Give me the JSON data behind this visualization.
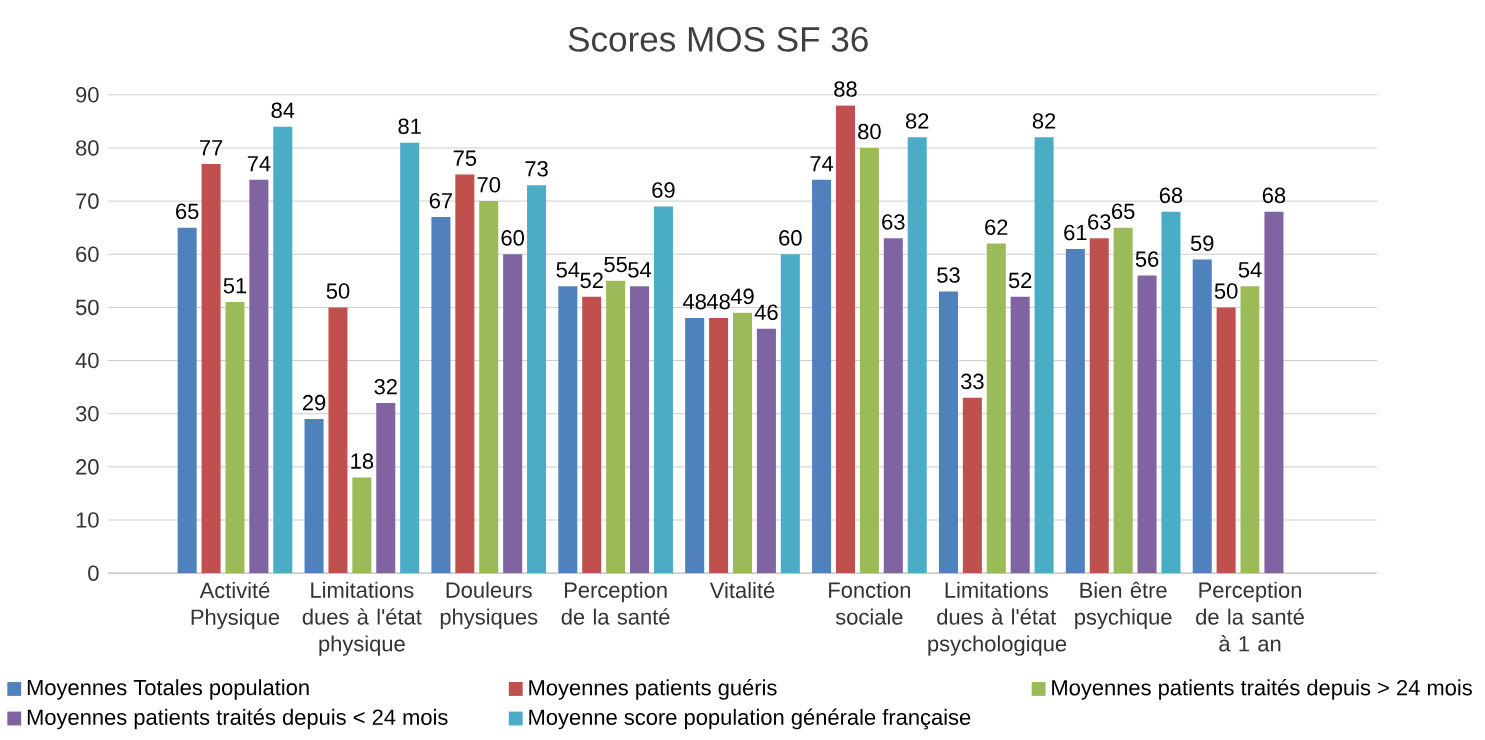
{
  "chart_data": {
    "type": "bar",
    "title": "Scores MOS SF 36",
    "categories": [
      "Activité Physique",
      "Limitations dues à l'état physique",
      "Douleurs physiques",
      "Perception de la santé",
      "Vitalité",
      "Fonction sociale",
      "Limitations dues à l'état psychologique",
      "Bien être psychique",
      "Perception de la santé à 1 an"
    ],
    "series": [
      {
        "name": "Moyennes Totales population",
        "color": "#4f81bd",
        "values": [
          65,
          29,
          67,
          54,
          48,
          74,
          53,
          61,
          59
        ]
      },
      {
        "name": "Moyennes patients guéris",
        "color": "#c0504d",
        "values": [
          77,
          50,
          75,
          52,
          48,
          88,
          33,
          63,
          50
        ]
      },
      {
        "name": "Moyennes patients traités depuis > 24 mois",
        "color": "#9bbb59",
        "values": [
          51,
          18,
          70,
          55,
          49,
          80,
          62,
          65,
          54
        ]
      },
      {
        "name": "Moyennes patients traités depuis < 24 mois",
        "color": "#8064a2",
        "values": [
          74,
          32,
          60,
          54,
          46,
          63,
          52,
          56,
          68
        ]
      },
      {
        "name": "Moyenne score population générale française",
        "color": "#4bacc6",
        "values": [
          84,
          81,
          73,
          69,
          60,
          82,
          82,
          68,
          null
        ]
      }
    ],
    "ylim": [
      0,
      90
    ],
    "yticks": [
      0,
      10,
      20,
      30,
      40,
      50,
      60,
      70,
      80,
      90
    ],
    "grid": "y",
    "legend": "bottom",
    "data_labels": true
  }
}
